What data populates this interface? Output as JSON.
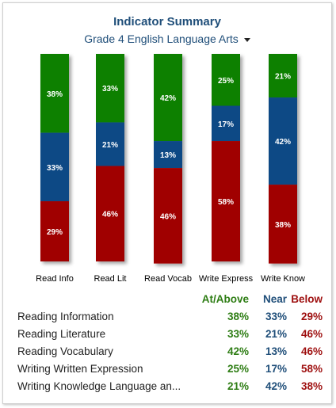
{
  "header": {
    "title": "Indicator Summary",
    "subject": "Grade 4 English Language Arts"
  },
  "colors": {
    "at_above": "#0b8000",
    "near": "#0d4a85",
    "below": "#a00000"
  },
  "chart_data": {
    "type": "bar",
    "stacked": true,
    "categories": [
      "Read Info",
      "Read Lit",
      "Read Vocab",
      "Write Express",
      "Write Know"
    ],
    "series": [
      {
        "name": "At/Above",
        "values": [
          38,
          33,
          42,
          25,
          21
        ]
      },
      {
        "name": "Near",
        "values": [
          33,
          21,
          13,
          17,
          42
        ]
      },
      {
        "name": "Below",
        "values": [
          29,
          46,
          46,
          58,
          38
        ]
      }
    ],
    "ylim": [
      0,
      100
    ]
  },
  "table": {
    "headers": [
      "At/Above",
      "Near",
      "Below"
    ],
    "rows": [
      {
        "name": "Reading Information",
        "at": "38%",
        "near": "33%",
        "below": "29%"
      },
      {
        "name": "Reading Literature",
        "at": "33%",
        "near": "21%",
        "below": "46%"
      },
      {
        "name": "Reading Vocabulary",
        "at": "42%",
        "near": "13%",
        "below": "46%"
      },
      {
        "name": "Writing Written Expression",
        "at": "25%",
        "near": "17%",
        "below": "58%"
      },
      {
        "name": "Writing Knowledge Language an...",
        "at": "21%",
        "near": "42%",
        "below": "38%"
      }
    ]
  }
}
